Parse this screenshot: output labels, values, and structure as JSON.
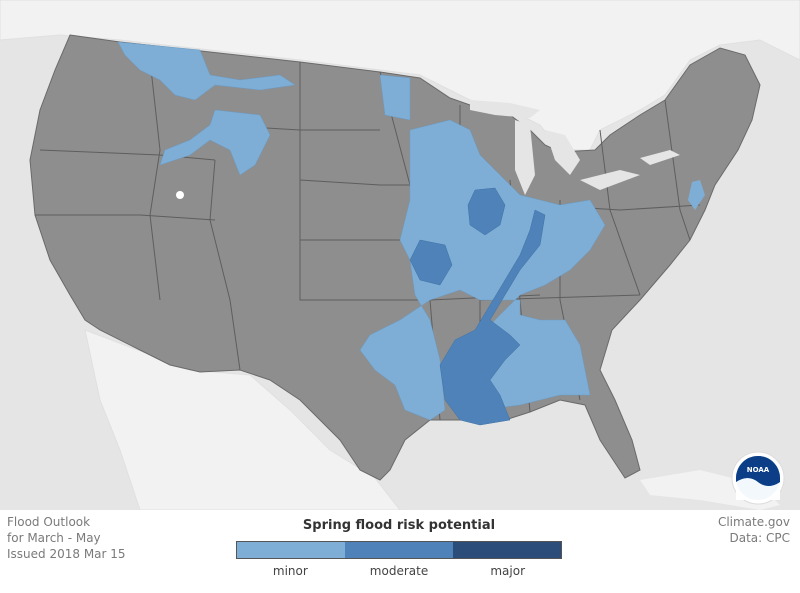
{
  "colors": {
    "background": "#e5e5e5",
    "land_neighbor": "#f2f2f2",
    "us_land": "#8e8e8e",
    "state_border": "#5e5e5e",
    "minor": "#7eaed6",
    "moderate": "#4e82b8",
    "major": "#2c4c7a"
  },
  "info": {
    "line1": "Flood Outlook",
    "line2": "for March - May",
    "line3": "Issued 2018 Mar 15"
  },
  "credit": {
    "line1": "Climate.gov",
    "line2": "Data: CPC"
  },
  "legend": {
    "title": "Spring flood risk potential",
    "items": [
      {
        "label": "minor",
        "color": "#7eaed6"
      },
      {
        "label": "moderate",
        "color": "#4e82b8"
      },
      {
        "label": "major",
        "color": "#2c4c7a"
      }
    ]
  },
  "logo": {
    "text": "NOAA",
    "icon": "noaa-logo-icon"
  }
}
